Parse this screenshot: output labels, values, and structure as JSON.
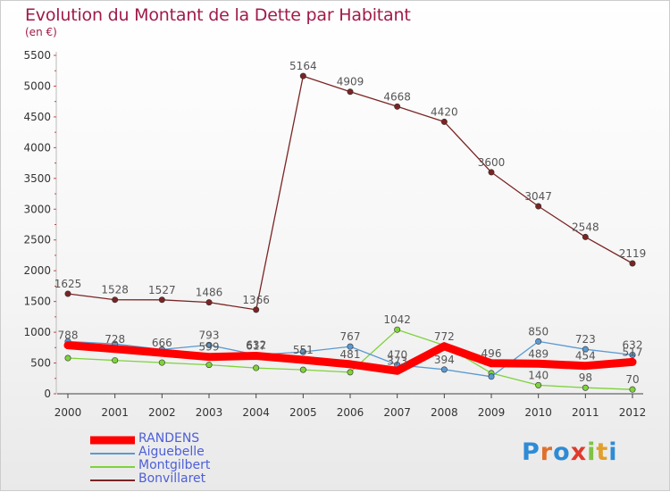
{
  "title": "Evolution du Montant de la Dette par Habitant",
  "subtitle": "(en €)",
  "brand": "Proxiti",
  "chart_data": {
    "type": "line",
    "title": "Evolution du Montant de la Dette par Habitant",
    "ylabel": "(en €)",
    "ylim": [
      0,
      5500
    ],
    "yticks": [
      0,
      500,
      1000,
      1500,
      2000,
      2500,
      3000,
      3500,
      4000,
      4500,
      5000,
      5500
    ],
    "categories": [
      "2000",
      "2001",
      "2002",
      "2003",
      "2004",
      "2005",
      "2006",
      "2007",
      "2008",
      "2009",
      "2010",
      "2011",
      "2012"
    ],
    "grid": false,
    "legend_position": "bottom-left",
    "series": [
      {
        "name": "RANDENS",
        "color": "#ff0000",
        "values": [
          788,
          728,
          666,
          599,
          617,
          551,
          481,
          373,
          772,
          496,
          489,
          454,
          517
        ],
        "labels": [
          "788",
          "728",
          "666",
          "599",
          "617",
          "551",
          "481",
          "373",
          "772",
          "496",
          "489",
          "454",
          "517"
        ]
      },
      {
        "name": "Aiguebelle",
        "color": "#5a9ad2",
        "values": [
          850,
          810,
          720,
          793,
          632,
          680,
          767,
          470,
          394,
          279,
          850,
          723,
          632
        ],
        "labels": [
          "",
          "",
          "",
          "793",
          "632",
          "",
          "767",
          "470",
          "394",
          "",
          "850",
          "723",
          "632"
        ]
      },
      {
        "name": "Montgilbert",
        "color": "#7fd23c",
        "values": [
          580,
          543,
          507,
          470,
          420,
          390,
          350,
          1042,
          788,
          335,
          140,
          98,
          70
        ],
        "labels": [
          "",
          "",
          "",
          "",
          "",
          "",
          "",
          "1042",
          "",
          "",
          "140",
          "98",
          "70"
        ]
      },
      {
        "name": "Bonvillaret",
        "color": "#7b2424",
        "values": [
          1625,
          1528,
          1527,
          1486,
          1366,
          5164,
          4909,
          4668,
          4420,
          3600,
          3047,
          2548,
          2119
        ],
        "labels": [
          "1625",
          "1528",
          "1527",
          "1486",
          "1366",
          "5164",
          "4909",
          "4668",
          "4420",
          "3600",
          "3047",
          "2548",
          "2119"
        ]
      }
    ]
  }
}
